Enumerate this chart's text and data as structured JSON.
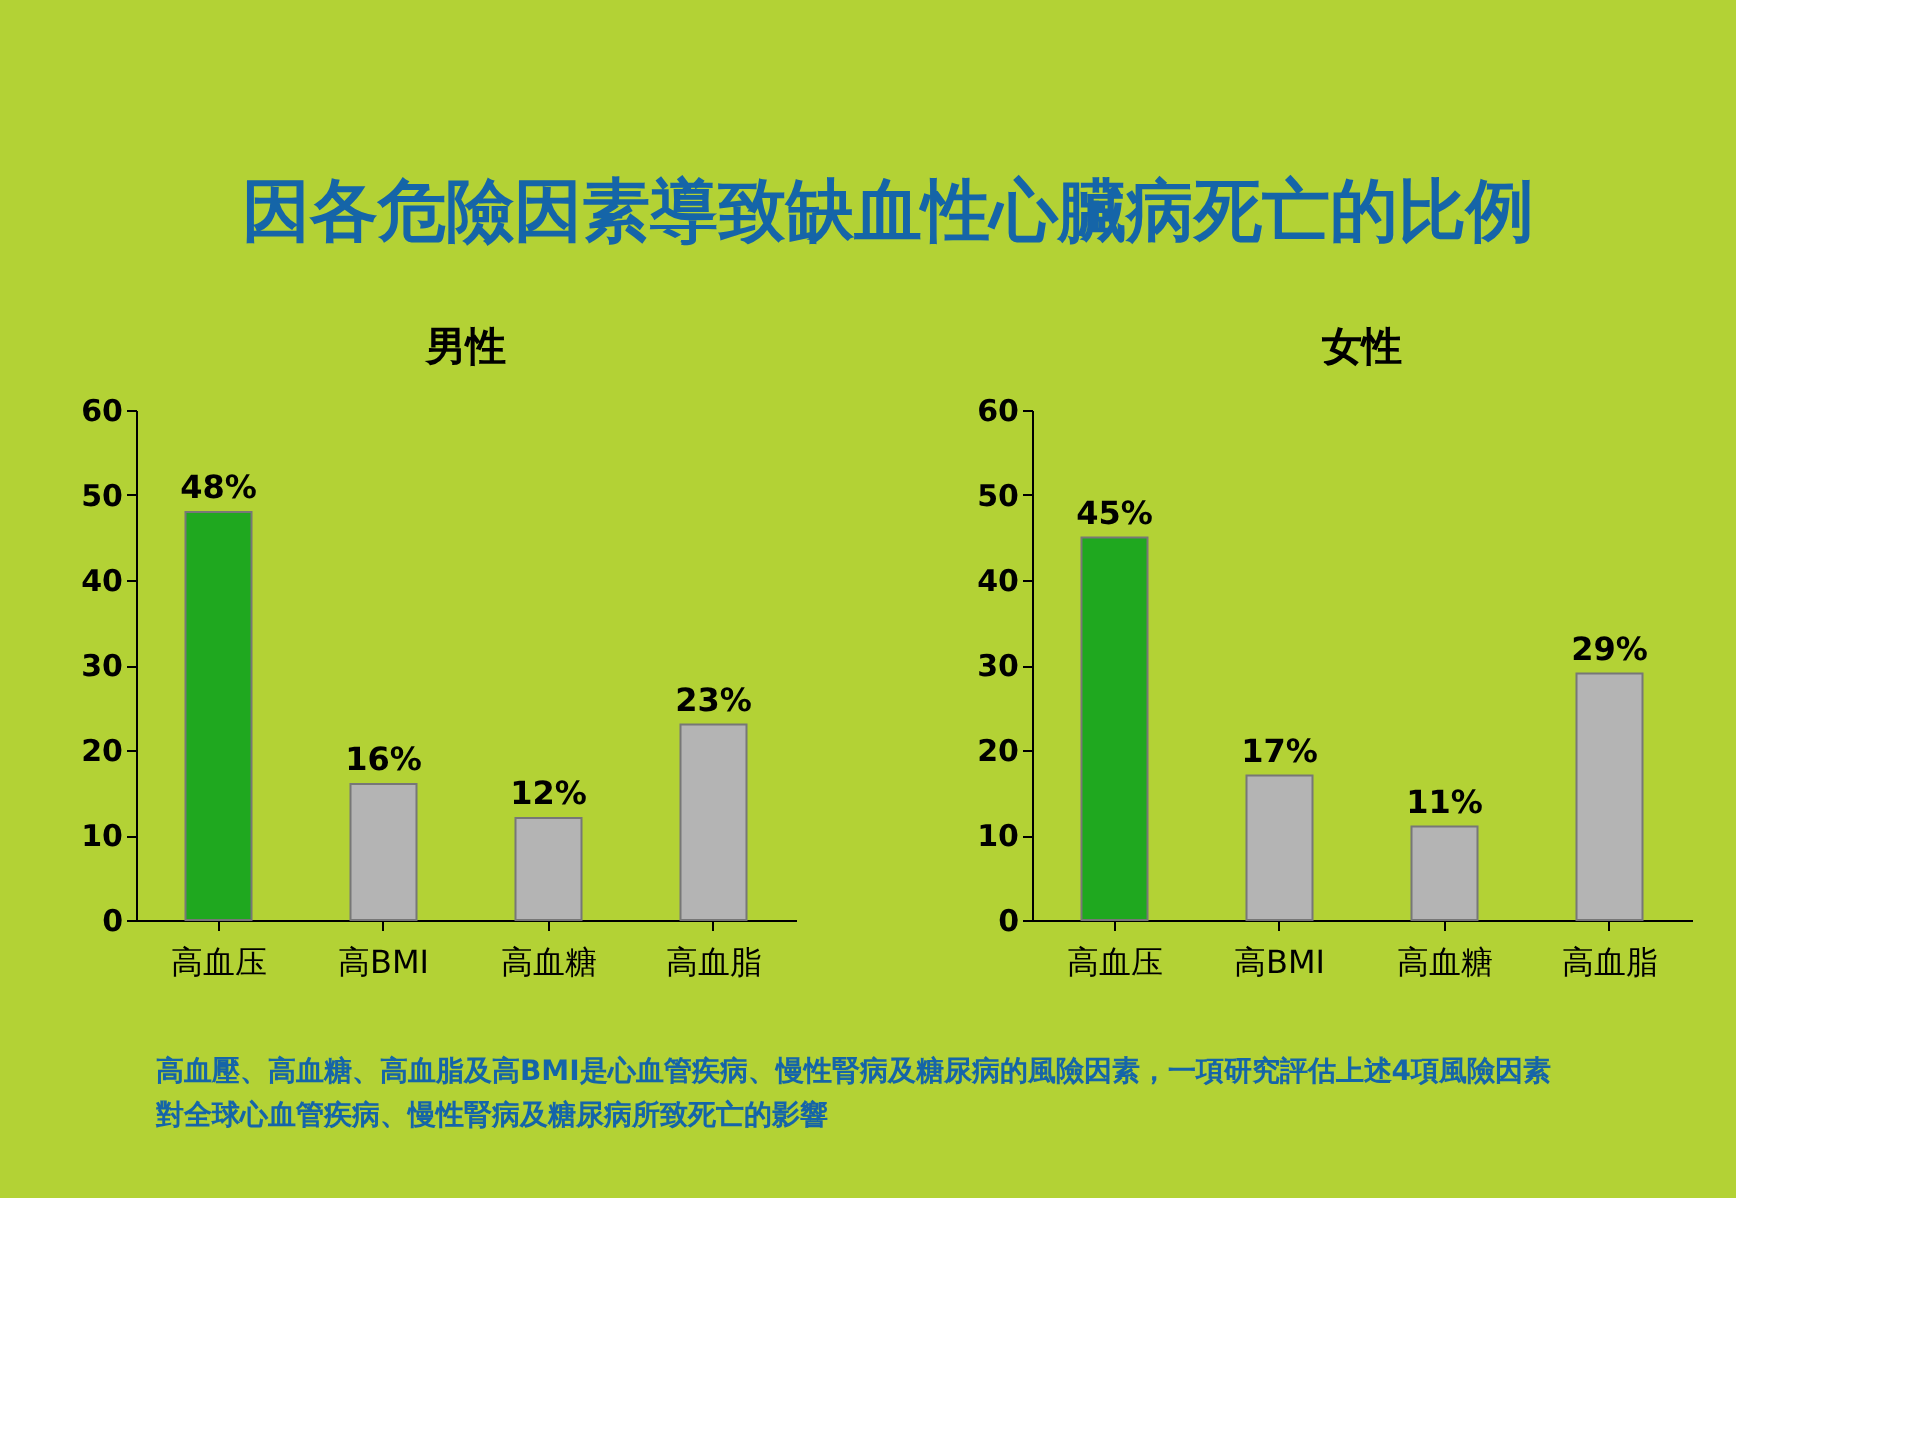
{
  "chart_data": [
    {
      "type": "bar",
      "title": "因各危險因素導致缺血性心臟病死亡的比例",
      "subtitle": "男性",
      "categories": [
        "高血压",
        "高BMI",
        "高血糖",
        "高血脂"
      ],
      "values": [
        48,
        16,
        12,
        23
      ],
      "colors": [
        "#1fa81f",
        "#b4b4b4",
        "#b4b4b4",
        "#b4b4b4"
      ],
      "value_labels": [
        "48%",
        "16%",
        "12%",
        "23%"
      ],
      "ylim": [
        0,
        60
      ],
      "yticks": [
        0,
        10,
        20,
        30,
        40,
        50,
        60
      ],
      "grid": false
    },
    {
      "type": "bar",
      "subtitle": "女性",
      "categories": [
        "高血压",
        "高BMI",
        "高血糖",
        "高血脂"
      ],
      "values": [
        45,
        17,
        11,
        29
      ],
      "colors": [
        "#1fa81f",
        "#b4b4b4",
        "#b4b4b4",
        "#b4b4b4"
      ],
      "value_labels": [
        "45%",
        "17%",
        "11%",
        "29%"
      ],
      "ylim": [
        0,
        60
      ],
      "yticks": [
        0,
        10,
        20,
        30,
        40,
        50,
        60
      ],
      "grid": false,
      "annotations": [
        "高血壓、高血糖、高血脂及高BMI是心血管疾病、慢性腎病及糖尿病的風險因素，一項研究評估上述4項風險因素對全球心血管疾病、慢性腎病及糖尿病所致死亡的影響"
      ]
    }
  ]
}
